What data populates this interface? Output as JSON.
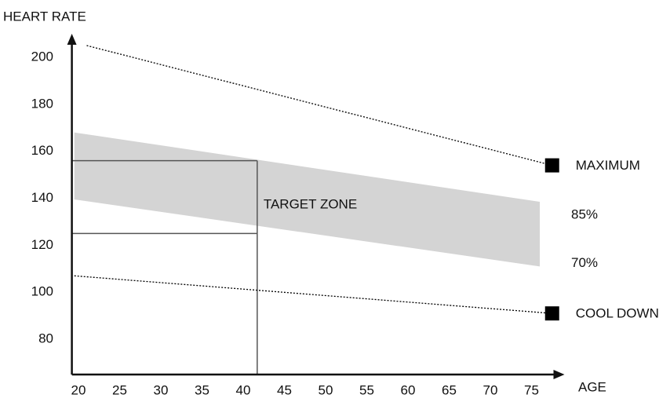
{
  "chart_data": {
    "type": "line",
    "y_axis_label": "HEART RATE",
    "x_axis_label": "AGE",
    "xlim": [
      19.2,
      79
    ],
    "ylim": [
      65,
      210
    ],
    "xticks": [
      20,
      25,
      30,
      35,
      40,
      45,
      50,
      55,
      60,
      65,
      70,
      75
    ],
    "yticks": [
      80,
      100,
      120,
      140,
      160,
      180,
      200
    ],
    "grid": false,
    "series": [
      {
        "name": "MAXIMUM",
        "color": "#000000",
        "x": [
          21,
          77.5
        ],
        "values": [
          205,
          154
        ]
      },
      {
        "name": "COOL DOWN",
        "color": "#000000",
        "x": [
          19.5,
          77.5
        ],
        "values": [
          107,
          91
        ]
      }
    ],
    "band": {
      "color": "#d4d4d4",
      "x": [
        19.5,
        76
      ],
      "upper": [
        168,
        138.5
      ],
      "lower": [
        139.5,
        111
      ],
      "upper_label": "85%",
      "lower_label": "70%"
    },
    "target_zone": {
      "label": "TARGET ZONE",
      "age": 41.7,
      "upper": 156,
      "lower": 125
    }
  }
}
